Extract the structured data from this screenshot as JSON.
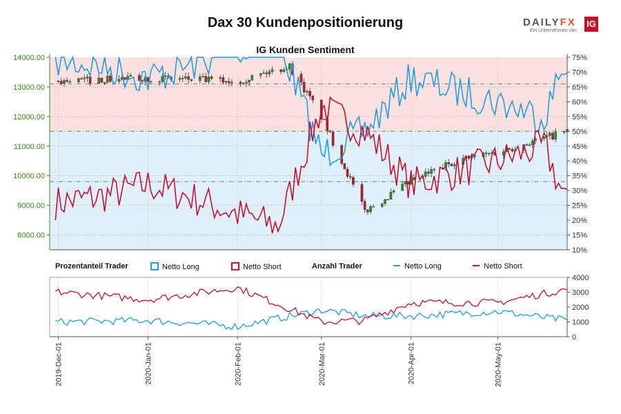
{
  "header": {
    "title": "Dax 30 Kundenpositionierung",
    "subtitle": "IG Kunden Sentiment"
  },
  "logo": {
    "brand_main": "DAILY",
    "brand_fx": "FX",
    "tagline": "Ein Unternehmen von",
    "ig": "IG"
  },
  "legend": {
    "pct_title": "Prozentanteil Trader",
    "pct_long": "Netto Long",
    "pct_short": "Netto Short",
    "count_title": "Anzahl Trader",
    "count_long": "Netto Long",
    "count_short": "Netto Short"
  },
  "colors": {
    "long": "#1f9ee0",
    "short": "#c8102e",
    "up_candle": "#2e8b2e",
    "down_candle": "#b22222",
    "short_zone": "#fbe0e0",
    "long_zone": "#e0f0fa",
    "left_axis": "#3a8a1a"
  },
  "chart_data": [
    {
      "type": "line",
      "name": "price-and-sentiment",
      "left_axis": {
        "min": 7500,
        "max": 14000,
        "ticks": [
          "8000.00",
          "9000.00",
          "10000.00",
          "11000.00",
          "12000.00",
          "13000.00",
          "14000.00"
        ]
      },
      "right_axis": {
        "min": 10,
        "max": 75,
        "ticks": [
          "10%",
          "15%",
          "20%",
          "25%",
          "30%",
          "35%",
          "40%",
          "45%",
          "50%",
          "55%",
          "60%",
          "65%",
          "70%",
          "75%"
        ]
      },
      "reference_lines_pct": [
        66,
        50,
        33
      ],
      "x_dates": [
        "2019-Dec-01",
        "2020-Jan-01",
        "2020-Feb-01",
        "2020-Mar-01",
        "2020-Apr-01",
        "2020-May-01"
      ],
      "x_days": [
        0,
        31,
        62,
        91,
        122,
        152
      ],
      "x_range_days": [
        -3,
        176
      ],
      "short_pct_monthly": [
        {
          "day": 0,
          "value": 26
        },
        {
          "day": 15,
          "value": 28
        },
        {
          "day": 31,
          "value": 32
        },
        {
          "day": 45,
          "value": 28
        },
        {
          "day": 62,
          "value": 22
        },
        {
          "day": 76,
          "value": 18
        },
        {
          "day": 91,
          "value": 58
        },
        {
          "day": 106,
          "value": 50
        },
        {
          "day": 122,
          "value": 32
        },
        {
          "day": 137,
          "value": 36
        },
        {
          "day": 152,
          "value": 40
        },
        {
          "day": 168,
          "value": 45
        },
        {
          "day": 176,
          "value": 25
        }
      ],
      "price_monthly": [
        {
          "day": 0,
          "value": 13200
        },
        {
          "day": 31,
          "value": 13300
        },
        {
          "day": 62,
          "value": 13200
        },
        {
          "day": 80,
          "value": 13700
        },
        {
          "day": 91,
          "value": 12000
        },
        {
          "day": 106,
          "value": 8800
        },
        {
          "day": 122,
          "value": 9800
        },
        {
          "day": 137,
          "value": 10500
        },
        {
          "day": 152,
          "value": 10800
        },
        {
          "day": 176,
          "value": 11500
        }
      ]
    },
    {
      "type": "line",
      "name": "trader-counts",
      "y_axis": {
        "min": 0,
        "max": 4000,
        "ticks": [
          "0",
          "1000",
          "2000",
          "3000",
          "4000"
        ]
      },
      "series": [
        {
          "name": "Netto Long",
          "values_monthly": [
            {
              "day": 0,
              "value": 1000
            },
            {
              "day": 31,
              "value": 1100
            },
            {
              "day": 62,
              "value": 700
            },
            {
              "day": 91,
              "value": 1800
            },
            {
              "day": 106,
              "value": 1400
            },
            {
              "day": 122,
              "value": 1400
            },
            {
              "day": 152,
              "value": 1700
            },
            {
              "day": 176,
              "value": 1100
            }
          ]
        },
        {
          "name": "Netto Short",
          "values_monthly": [
            {
              "day": 0,
              "value": 3000
            },
            {
              "day": 31,
              "value": 2500
            },
            {
              "day": 62,
              "value": 3300
            },
            {
              "day": 91,
              "value": 1000
            },
            {
              "day": 106,
              "value": 1100
            },
            {
              "day": 122,
              "value": 2300
            },
            {
              "day": 152,
              "value": 2300
            },
            {
              "day": 176,
              "value": 3200
            }
          ]
        }
      ]
    }
  ]
}
